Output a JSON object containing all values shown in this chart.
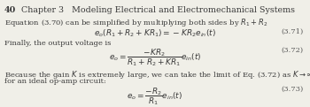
{
  "background_color": "#f0efe8",
  "header_bold": "40",
  "header_chapter": "Chapter 3   Modeling Electrical and Electromechanical Systems",
  "line1": "Equation (3.70) can be simplified by multiplying both sides by $R_1 + R_2$",
  "eq371": "$e_o(R_1 + R_2 + KR_1) = -KR_2e_{in}(t)$",
  "eq371_num": "(3.71)",
  "line2": "Finally, the output voltage is",
  "eq372": "$e_o = \\dfrac{-KR_2}{R_1 + R_2 + KR_1}e_{in}(t)$",
  "eq372_num": "(3.72)",
  "line3a": "Because the gain $K$ is extremely large, we can take the limit of Eq. (3.72) as $K \\rightarrow \\infty$ to obtain the output voltage relationship",
  "line3b": "for an ideal op-amp circuit:",
  "eq373": "$e_o = \\dfrac{-R_2}{R_1}e_{in}(t)$",
  "eq373_num": "(3.73)",
  "text_color": "#3a3a3a",
  "num_color": "#5a5a5a",
  "fs_header": 6.8,
  "fs_body": 6.0,
  "fs_eq": 6.5
}
